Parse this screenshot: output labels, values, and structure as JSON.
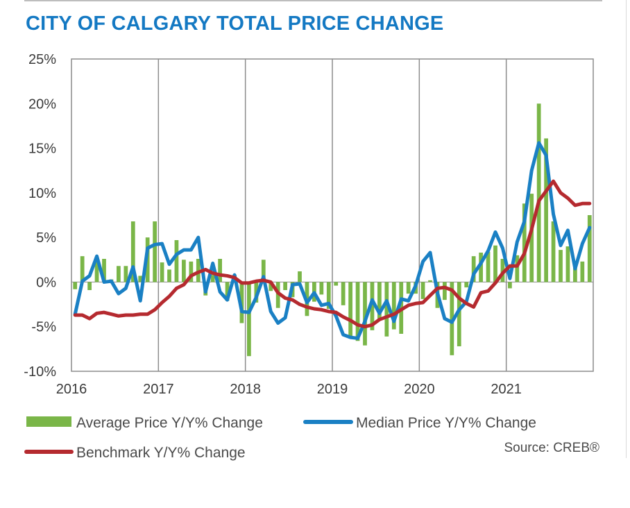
{
  "title": "CITY OF CALGARY TOTAL PRICE CHANGE",
  "source": "Source: CREB®",
  "colors": {
    "title": "#1479c3",
    "average": "#7ab648",
    "median": "#1a80c4",
    "benchmark": "#b52a2f",
    "gridline": "#8c8c8c"
  },
  "chart_data": {
    "type": "bar+line",
    "title": "CITY OF CALGARY TOTAL PRICE CHANGE",
    "ylim": [
      -10,
      25
    ],
    "yticks": [
      -10,
      -5,
      0,
      5,
      10,
      15,
      20,
      25
    ],
    "ytick_labels": [
      "-10%",
      "-5%",
      "0%",
      "5%",
      "10%",
      "15%",
      "20%",
      "25%"
    ],
    "xticks": [
      2016,
      2017,
      2018,
      2019,
      2020,
      2021
    ],
    "xtick_labels": [
      "2016",
      "2017",
      "2018",
      "2019",
      "2020",
      "2021"
    ],
    "x_start": "2016-01",
    "grid": "vertical lines at each year",
    "legend_position": "bottom",
    "series": [
      {
        "name": "Average Price Y/Y% Change",
        "kind": "bar",
        "values": [
          -0.8,
          2.9,
          -0.9,
          2.3,
          2.6,
          0.3,
          1.8,
          1.8,
          6.8,
          0.7,
          5.0,
          6.8,
          2.2,
          1.4,
          4.7,
          2.5,
          2.3,
          2.6,
          -1.5,
          0.8,
          2.6,
          -2.1,
          0.8,
          -4.6,
          -8.3,
          -2.3,
          2.5,
          -1.0,
          -2.9,
          -0.9,
          -1.7,
          1.2,
          -3.8,
          -2.2,
          -1.4,
          -3.0,
          -0.4,
          -2.6,
          -6.3,
          -6.6,
          -7.1,
          -5.4,
          -4.1,
          -6.1,
          -5.3,
          -5.8,
          -1.3,
          -1.3,
          -1.9,
          0.2,
          -2.9,
          -2.0,
          -8.2,
          -7.2,
          -0.6,
          2.9,
          3.3,
          3.4,
          4.1,
          2.6,
          -0.7,
          3.0,
          8.8,
          9.9,
          20.0,
          16.1,
          6.8,
          3.6,
          4.0,
          1.8,
          2.3,
          7.5
        ]
      },
      {
        "name": "Median Price Y/Y% Change",
        "kind": "line",
        "values": [
          -3.6,
          0.1,
          0.7,
          2.9,
          0.0,
          0.1,
          -1.3,
          -0.7,
          1.7,
          -2.1,
          3.8,
          4.2,
          4.3,
          2.0,
          3.1,
          3.6,
          3.6,
          5.0,
          -1.1,
          2.1,
          -1.1,
          -2.0,
          0.8,
          -3.3,
          -3.4,
          -1.7,
          0.6,
          -3.3,
          -4.6,
          -4.0,
          -0.3,
          -0.2,
          -2.3,
          -1.2,
          -2.6,
          -2.4,
          -3.8,
          -5.9,
          -6.2,
          -6.3,
          -4.4,
          -2.0,
          -3.5,
          -2.1,
          -4.4,
          -1.9,
          -2.1,
          -0.4,
          2.3,
          3.3,
          -1.2,
          -4.1,
          -4.5,
          -3.1,
          -2.2,
          0.9,
          2.1,
          3.5,
          5.6,
          3.8,
          0.4,
          4.5,
          6.8,
          12.5,
          15.6,
          14.2,
          7.6,
          4.1,
          5.8,
          1.5,
          4.3,
          6.1
        ]
      },
      {
        "name": "Benchmark Y/Y% Change",
        "kind": "line",
        "values": [
          -3.7,
          -3.7,
          -4.1,
          -3.5,
          -3.4,
          -3.6,
          -3.8,
          -3.7,
          -3.7,
          -3.6,
          -3.6,
          -3.1,
          -2.3,
          -1.6,
          -0.7,
          -0.3,
          0.7,
          1.1,
          1.4,
          1.0,
          0.8,
          0.7,
          0.5,
          -0.1,
          -0.1,
          0.1,
          0.2,
          0.0,
          -1.2,
          -1.8,
          -2.0,
          -2.5,
          -2.8,
          -3.0,
          -3.1,
          -3.3,
          -3.4,
          -3.9,
          -4.3,
          -4.8,
          -5.0,
          -4.8,
          -4.2,
          -3.9,
          -3.6,
          -3.1,
          -2.6,
          -2.4,
          -2.3,
          -1.5,
          -0.7,
          -0.6,
          -0.9,
          -1.8,
          -2.4,
          -2.8,
          -1.2,
          -1.0,
          -0.1,
          1.0,
          1.8,
          1.8,
          3.2,
          5.9,
          9.1,
          10.2,
          11.3,
          10.0,
          9.4,
          8.6,
          8.8,
          8.8
        ]
      }
    ]
  }
}
